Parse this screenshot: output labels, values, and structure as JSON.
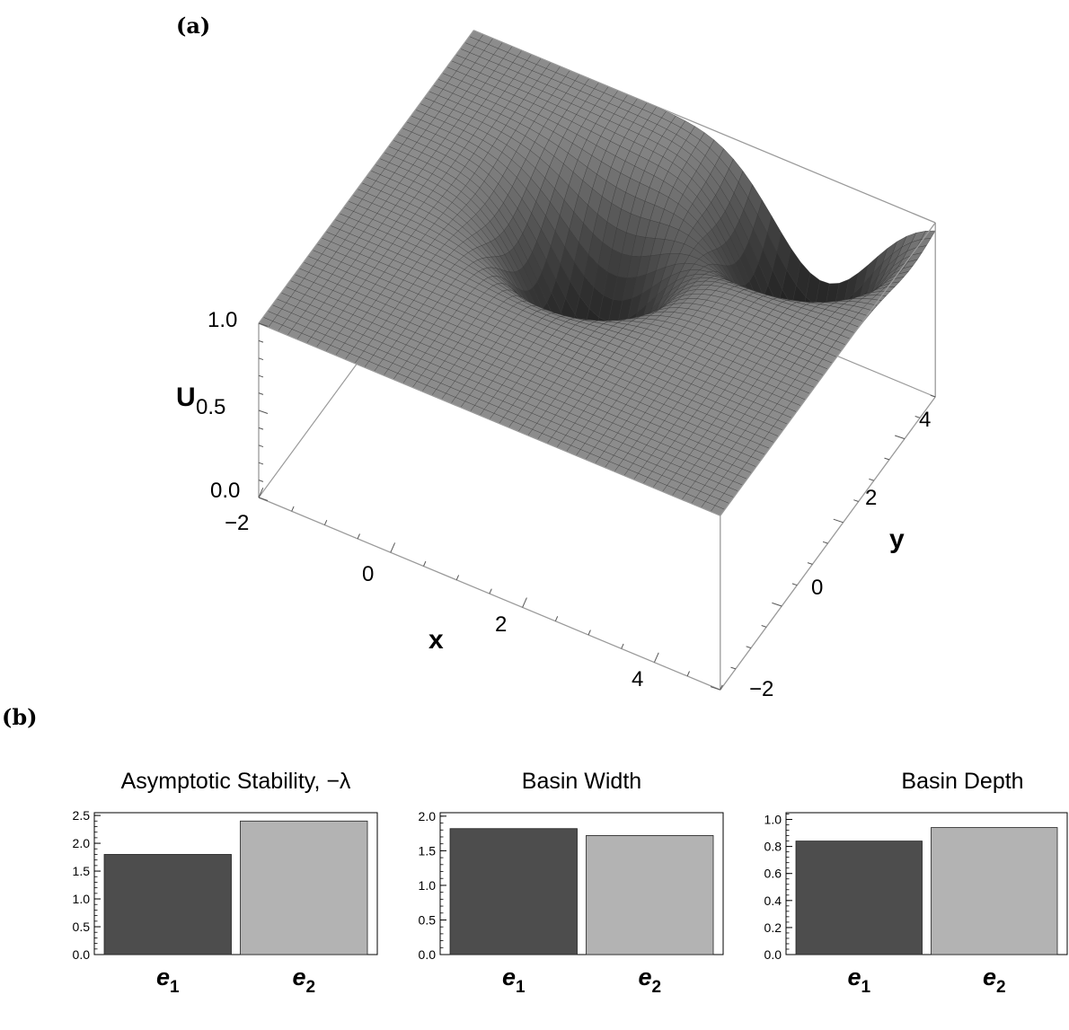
{
  "panels": {
    "a_label": "(a)",
    "b_label": "(b)"
  },
  "colors": {
    "surface": "#8a8a8a",
    "mesh": "#333333",
    "bar_e1": "#4d4d4d",
    "bar_e2": "#b3b3b3",
    "frame": "#000000"
  },
  "chart_data": [
    {
      "type": "surface3d",
      "zlabel": "U",
      "xlabel": "x",
      "ylabel": "y",
      "x_ticks": [
        "−2",
        "0",
        "2",
        "4"
      ],
      "y_ticks": [
        "−2",
        "0",
        "2",
        "4"
      ],
      "z_ticks": [
        "0.0",
        "0.5",
        "1.0"
      ],
      "xlim": [
        -2,
        5
      ],
      "ylim": [
        -2,
        5
      ],
      "zlim": [
        0,
        1
      ],
      "wells": [
        {
          "x": 1.0,
          "y": 2.3,
          "depth": 0.84
        },
        {
          "x": 3.3,
          "y": 4.3,
          "depth": 0.94
        }
      ]
    },
    {
      "type": "bar",
      "title": "Asymptotic Stability, −λ",
      "categories": [
        "e1",
        "e2"
      ],
      "values": [
        1.8,
        2.4
      ],
      "ylim": [
        0,
        2.55
      ],
      "yticks": [
        "0.0",
        "0.5",
        "1.0",
        "1.5",
        "2.0",
        "2.5"
      ]
    },
    {
      "type": "bar",
      "title": "Basin Width",
      "categories": [
        "e1",
        "e2"
      ],
      "values": [
        1.82,
        1.72
      ],
      "ylim": [
        0,
        2.05
      ],
      "yticks": [
        "0.0",
        "0.5",
        "1.0",
        "1.5",
        "2.0"
      ]
    },
    {
      "type": "bar",
      "title": "Basin Depth",
      "categories": [
        "e1",
        "e2"
      ],
      "values": [
        0.84,
        0.94
      ],
      "ylim": [
        0,
        1.05
      ],
      "yticks": [
        "0.0",
        "0.2",
        "0.4",
        "0.6",
        "0.8",
        "1.0"
      ]
    }
  ]
}
